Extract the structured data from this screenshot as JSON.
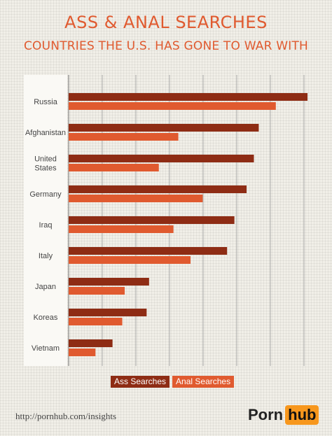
{
  "title": "ASS & ANAL SEARCHES",
  "subtitle": "COUNTRIES THE U.S. HAS GONE TO WAR WITH",
  "footer_url": "http://pornhub.com/insights",
  "logo": {
    "left": "Porn",
    "right": "hub"
  },
  "colors": {
    "ass": "#8e2c14",
    "anal": "#e05a2f",
    "title": "#e05a2f",
    "logo_accent": "#f7971d"
  },
  "chart_data": {
    "type": "bar",
    "orientation": "horizontal",
    "categories": [
      [
        "Russia"
      ],
      [
        "Afghanistan"
      ],
      [
        "United",
        "States"
      ],
      [
        "Germany"
      ],
      [
        "Iraq"
      ],
      [
        "Italy"
      ],
      [
        "Japan"
      ],
      [
        "Koreas"
      ],
      [
        "Vietnam"
      ]
    ],
    "series": [
      {
        "name": "Ass Searches",
        "color": "#8e2c14",
        "values": [
          9.8,
          7.8,
          7.6,
          7.3,
          6.8,
          6.5,
          3.3,
          3.2,
          1.8
        ]
      },
      {
        "name": "Anal Searches",
        "color": "#e05a2f",
        "values": [
          8.5,
          4.5,
          3.7,
          5.5,
          4.3,
          5.0,
          2.3,
          2.2,
          1.1
        ]
      }
    ],
    "xlim": [
      0,
      10
    ],
    "grid": true,
    "tick_labels_shown": false,
    "legend_position": "bottom-center"
  }
}
